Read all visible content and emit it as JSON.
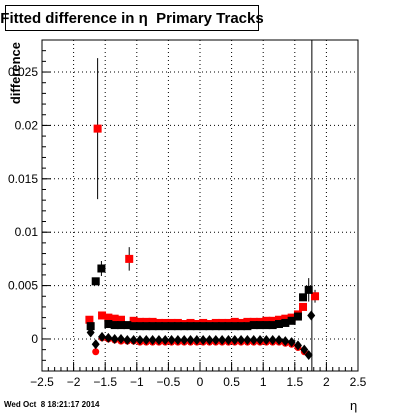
{
  "chart_data": {
    "type": "scatter",
    "title": "Fitted difference in η  Primary Tracks",
    "xlabel": "η",
    "ylabel": "difference",
    "xlim": [
      -2.5,
      2.5
    ],
    "ylim": [
      -0.003,
      0.028
    ],
    "x_ticks": [
      -2.5,
      -2,
      -1.5,
      -1,
      -0.5,
      0,
      0.5,
      1,
      1.5,
      2,
      2.5
    ],
    "x_tick_labels": [
      "−2.5",
      "−2",
      "−1.5",
      "−1",
      "−0.5",
      "0",
      "0.5",
      "1",
      "1.5",
      "2",
      "2.5"
    ],
    "y_ticks": [
      0,
      0.005,
      0.01,
      0.015,
      0.02,
      0.025
    ],
    "y_tick_labels": [
      "0",
      "0.005",
      "0.01",
      "0.015",
      "0.02",
      "0.025"
    ],
    "grid": true,
    "series": [
      {
        "marker": "square",
        "color": "#ff0000",
        "points": [
          {
            "x": -1.75,
            "y": 0.0018
          },
          {
            "x": -1.62,
            "y": 0.0197,
            "err": 0.0066
          },
          {
            "x": -1.55,
            "y": 0.0022
          },
          {
            "x": -1.45,
            "y": 0.002
          },
          {
            "x": -1.35,
            "y": 0.0019
          },
          {
            "x": -1.25,
            "y": 0.0018
          },
          {
            "x": -1.12,
            "y": 0.0075,
            "err": 0.0011
          },
          {
            "x": -1.05,
            "y": 0.0017
          },
          {
            "x": -0.95,
            "y": 0.0016
          },
          {
            "x": -0.85,
            "y": 0.0016
          },
          {
            "x": -0.75,
            "y": 0.0016
          },
          {
            "x": -0.65,
            "y": 0.0015
          },
          {
            "x": -0.55,
            "y": 0.0015
          },
          {
            "x": -0.45,
            "y": 0.0015
          },
          {
            "x": -0.35,
            "y": 0.0015
          },
          {
            "x": -0.25,
            "y": 0.0014
          },
          {
            "x": -0.15,
            "y": 0.0015
          },
          {
            "x": -0.05,
            "y": 0.0014
          },
          {
            "x": 0.05,
            "y": 0.0015
          },
          {
            "x": 0.15,
            "y": 0.0014
          },
          {
            "x": 0.25,
            "y": 0.0015
          },
          {
            "x": 0.35,
            "y": 0.0015
          },
          {
            "x": 0.45,
            "y": 0.0015
          },
          {
            "x": 0.55,
            "y": 0.0016
          },
          {
            "x": 0.65,
            "y": 0.0015
          },
          {
            "x": 0.75,
            "y": 0.0016
          },
          {
            "x": 0.85,
            "y": 0.0016
          },
          {
            "x": 0.95,
            "y": 0.0016
          },
          {
            "x": 1.05,
            "y": 0.0017
          },
          {
            "x": 1.15,
            "y": 0.0017
          },
          {
            "x": 1.25,
            "y": 0.0018
          },
          {
            "x": 1.35,
            "y": 0.0019
          },
          {
            "x": 1.45,
            "y": 0.002
          },
          {
            "x": 1.55,
            "y": 0.0023
          },
          {
            "x": 1.63,
            "y": 0.003
          },
          {
            "x": 1.82,
            "y": 0.004,
            "err": 0.0006
          }
        ]
      },
      {
        "marker": "square",
        "color": "#000000",
        "points": [
          {
            "x": -1.73,
            "y": 0.0012
          },
          {
            "x": -1.65,
            "y": 0.0054
          },
          {
            "x": -1.56,
            "y": 0.0066,
            "err": 0.0007
          },
          {
            "x": -1.45,
            "y": 0.0014
          },
          {
            "x": -1.35,
            "y": 0.0013
          },
          {
            "x": -1.25,
            "y": 0.0013
          },
          {
            "x": -1.15,
            "y": 0.0013
          },
          {
            "x": -1.05,
            "y": 0.0012
          },
          {
            "x": -0.95,
            "y": 0.0012
          },
          {
            "x": -0.85,
            "y": 0.0012
          },
          {
            "x": -0.75,
            "y": 0.0012
          },
          {
            "x": -0.65,
            "y": 0.0012
          },
          {
            "x": -0.55,
            "y": 0.0012
          },
          {
            "x": -0.45,
            "y": 0.0012
          },
          {
            "x": -0.35,
            "y": 0.0012
          },
          {
            "x": -0.25,
            "y": 0.0012
          },
          {
            "x": -0.15,
            "y": 0.0012
          },
          {
            "x": -0.05,
            "y": 0.0012
          },
          {
            "x": 0.05,
            "y": 0.0012
          },
          {
            "x": 0.15,
            "y": 0.0012
          },
          {
            "x": 0.25,
            "y": 0.0012
          },
          {
            "x": 0.35,
            "y": 0.0012
          },
          {
            "x": 0.45,
            "y": 0.0012
          },
          {
            "x": 0.55,
            "y": 0.0012
          },
          {
            "x": 0.65,
            "y": 0.0012
          },
          {
            "x": 0.75,
            "y": 0.0012
          },
          {
            "x": 0.85,
            "y": 0.0013
          },
          {
            "x": 0.95,
            "y": 0.0013
          },
          {
            "x": 1.05,
            "y": 0.0013
          },
          {
            "x": 1.15,
            "y": 0.0013
          },
          {
            "x": 1.25,
            "y": 0.0014
          },
          {
            "x": 1.35,
            "y": 0.0015
          },
          {
            "x": 1.45,
            "y": 0.0017
          },
          {
            "x": 1.55,
            "y": 0.0021
          },
          {
            "x": 1.63,
            "y": 0.0039
          },
          {
            "x": 1.72,
            "y": 0.0046,
            "err": 0.0011
          }
        ]
      },
      {
        "marker": "circle",
        "color": "#ff0000",
        "points": [
          {
            "x": -1.65,
            "y": -0.0012
          },
          {
            "x": -1.55,
            "y": 0.0001
          },
          {
            "x": -1.45,
            "y": 0.0
          },
          {
            "x": -1.35,
            "y": -0.0001
          },
          {
            "x": -1.25,
            "y": -0.0002
          },
          {
            "x": -1.15,
            "y": -0.0002
          },
          {
            "x": -1.05,
            "y": -0.0002
          },
          {
            "x": -0.95,
            "y": -0.0003
          },
          {
            "x": -0.85,
            "y": -0.0003
          },
          {
            "x": -0.75,
            "y": -0.0003
          },
          {
            "x": -0.65,
            "y": -0.0003
          },
          {
            "x": -0.55,
            "y": -0.0003
          },
          {
            "x": -0.45,
            "y": -0.0003
          },
          {
            "x": -0.35,
            "y": -0.0003
          },
          {
            "x": -0.25,
            "y": -0.0003
          },
          {
            "x": -0.15,
            "y": -0.0003
          },
          {
            "x": -0.05,
            "y": -0.0003
          },
          {
            "x": 0.05,
            "y": -0.0003
          },
          {
            "x": 0.15,
            "y": -0.0003
          },
          {
            "x": 0.25,
            "y": -0.0003
          },
          {
            "x": 0.35,
            "y": -0.0003
          },
          {
            "x": 0.45,
            "y": -0.0003
          },
          {
            "x": 0.55,
            "y": -0.0003
          },
          {
            "x": 0.65,
            "y": -0.0003
          },
          {
            "x": 0.75,
            "y": -0.0003
          },
          {
            "x": 0.85,
            "y": -0.0003
          },
          {
            "x": 0.95,
            "y": -0.0003
          },
          {
            "x": 1.05,
            "y": -0.0003
          },
          {
            "x": 1.15,
            "y": -0.0003
          },
          {
            "x": 1.25,
            "y": -0.0003
          },
          {
            "x": 1.35,
            "y": -0.0004
          },
          {
            "x": 1.45,
            "y": -0.0005
          },
          {
            "x": 1.55,
            "y": -0.0008
          },
          {
            "x": 1.65,
            "y": -0.0012
          }
        ]
      },
      {
        "marker": "diamond",
        "color": "#000000",
        "points": [
          {
            "x": -1.73,
            "y": 0.0006
          },
          {
            "x": -1.65,
            "y": -0.0005
          },
          {
            "x": -1.55,
            "y": 0.0002
          },
          {
            "x": -1.45,
            "y": 0.0001
          },
          {
            "x": -1.35,
            "y": 0.0
          },
          {
            "x": -1.25,
            "y": 0.0
          },
          {
            "x": -1.15,
            "y": -0.0001
          },
          {
            "x": -1.05,
            "y": -0.0001
          },
          {
            "x": -0.95,
            "y": -0.0001
          },
          {
            "x": -0.85,
            "y": -0.0001
          },
          {
            "x": -0.75,
            "y": -0.0001
          },
          {
            "x": -0.65,
            "y": -0.0001
          },
          {
            "x": -0.55,
            "y": -0.0001
          },
          {
            "x": -0.45,
            "y": -0.0001
          },
          {
            "x": -0.35,
            "y": -0.0001
          },
          {
            "x": -0.25,
            "y": -0.0001
          },
          {
            "x": -0.15,
            "y": -0.0001
          },
          {
            "x": -0.05,
            "y": -0.0001
          },
          {
            "x": 0.05,
            "y": -0.0001
          },
          {
            "x": 0.15,
            "y": -0.0001
          },
          {
            "x": 0.25,
            "y": -0.0001
          },
          {
            "x": 0.35,
            "y": -0.0001
          },
          {
            "x": 0.45,
            "y": -0.0001
          },
          {
            "x": 0.55,
            "y": -0.0001
          },
          {
            "x": 0.65,
            "y": -0.0001
          },
          {
            "x": 0.75,
            "y": -0.0001
          },
          {
            "x": 0.85,
            "y": -0.0001
          },
          {
            "x": 0.95,
            "y": -0.0001
          },
          {
            "x": 1.05,
            "y": -0.0001
          },
          {
            "x": 1.15,
            "y": -0.0001
          },
          {
            "x": 1.25,
            "y": -0.0001
          },
          {
            "x": 1.35,
            "y": -0.0002
          },
          {
            "x": 1.45,
            "y": -0.0003
          },
          {
            "x": 1.55,
            "y": -0.0006
          },
          {
            "x": 1.65,
            "y": -0.001
          },
          {
            "x": 1.72,
            "y": -0.0015
          },
          {
            "x": 1.76,
            "y": 0.0022
          }
        ]
      }
    ],
    "vertical_line_x": 1.77
  },
  "footer": "Wed Oct  8 18:21:17 2014"
}
